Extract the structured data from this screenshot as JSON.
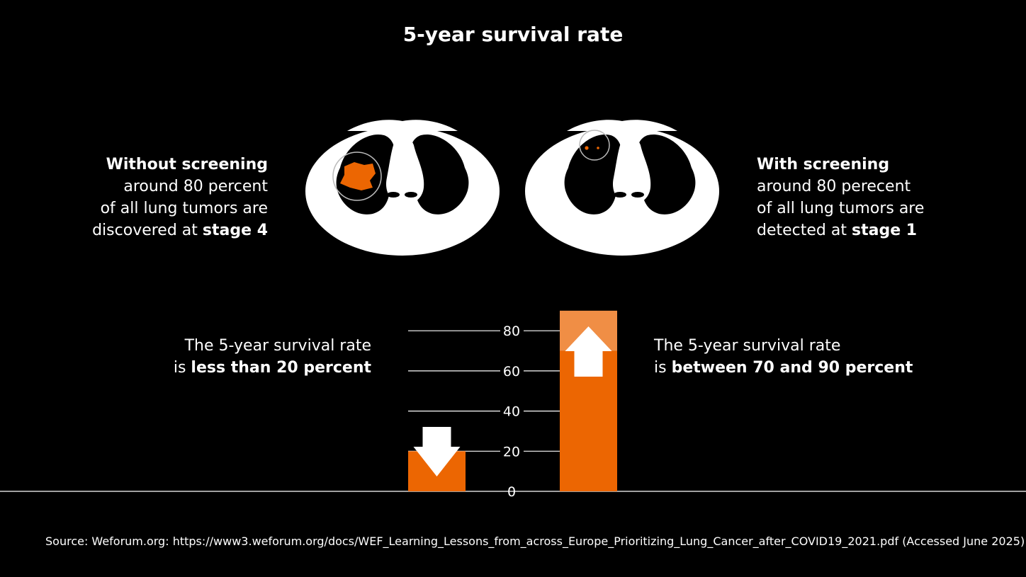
{
  "title": "5-year survival rate",
  "colors": {
    "accent": "#EC6602",
    "accent_light": "#F08E45",
    "background": "#000000",
    "text": "#FFFFFF"
  },
  "left_panel": {
    "heading": "Without screening",
    "line1": "around 80 percent",
    "line2": "of all lung tumors are",
    "line3_prefix": "discovered at ",
    "line3_bold": "stage 4",
    "icon": "lung-ct-scan-large-tumor-icon"
  },
  "right_panel": {
    "heading": "With screening",
    "line1": "around 80 perecent",
    "line2": "of all lung tumors are",
    "line3_prefix": "detected at ",
    "line3_bold": "stage 1",
    "icon": "lung-ct-scan-small-nodules-icon"
  },
  "rate_left": {
    "line1": "The 5-year survival rate",
    "line2_prefix": "is ",
    "line2_bold": "less than 20 percent"
  },
  "rate_right": {
    "line1": "The 5-year survival rate",
    "line2_prefix": "is ",
    "line2_bold": "between 70 and 90 percent"
  },
  "chart_data": {
    "type": "bar",
    "categories": [
      "Without screening",
      "With screening"
    ],
    "values": [
      20,
      90
    ],
    "range_low": [
      null,
      70
    ],
    "yticks": [
      0,
      20,
      40,
      60,
      80
    ],
    "ylim": [
      0,
      90
    ],
    "grid": true,
    "arrows": [
      "down-arrow-icon",
      "up-arrow-icon"
    ]
  },
  "source": "Source: Weforum.org: https://www3.weforum.org/docs/WEF_Learning_Lessons_from_across_Europe_Prioritizing_Lung_Cancer_after_COVID19_2021.pdf (Accessed June 2025)"
}
